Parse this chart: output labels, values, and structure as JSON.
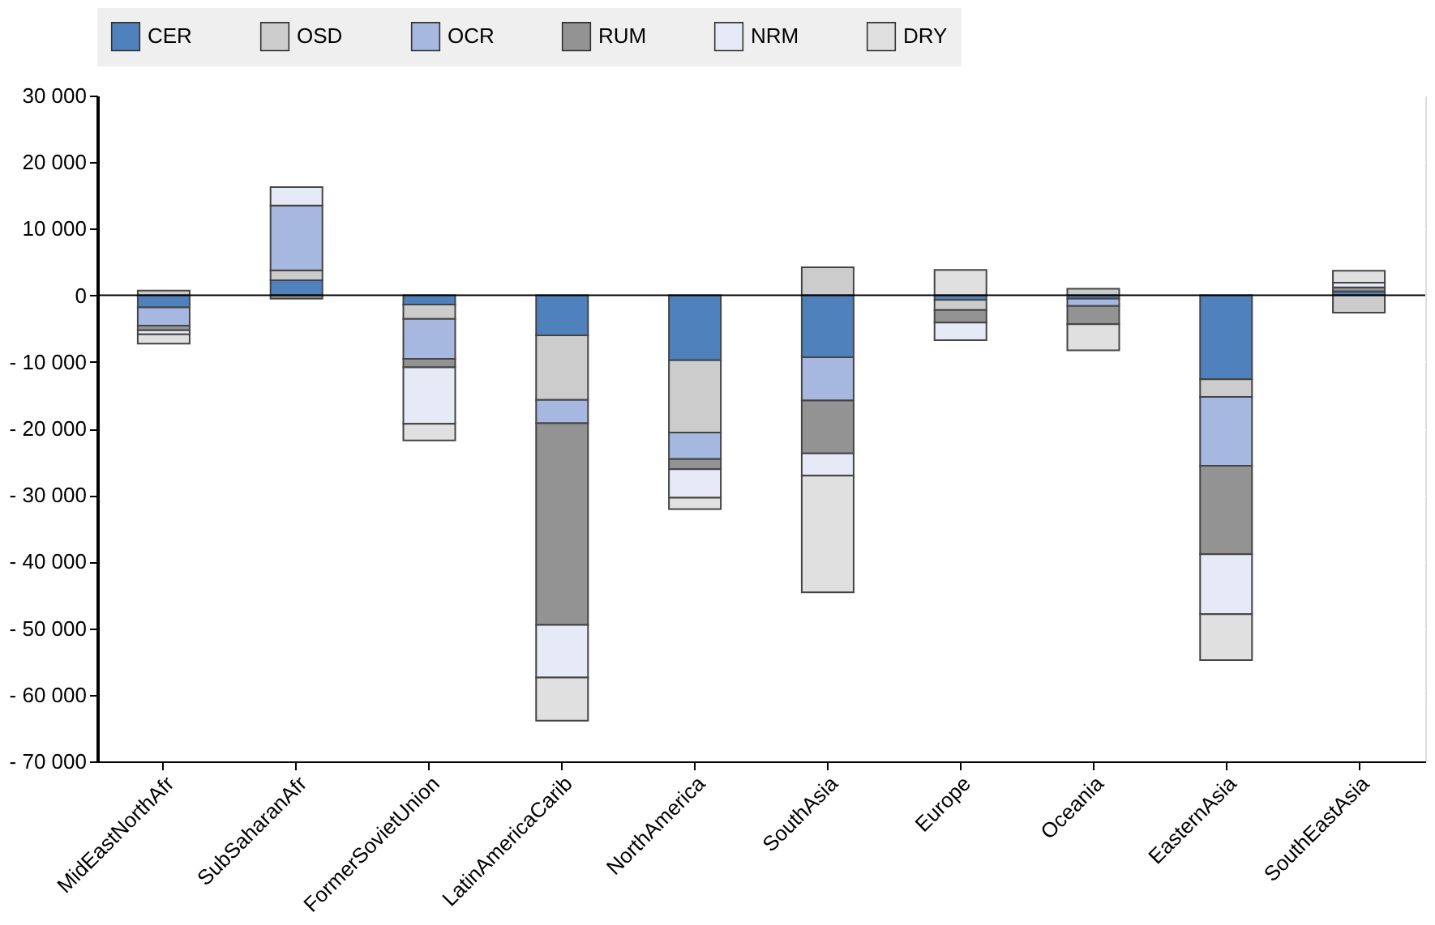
{
  "chart_data": {
    "type": "bar",
    "stacked": true,
    "categories": [
      "MidEastNorthAfr",
      "SubSaharanAfr",
      "FormerSovietUnion",
      "LatinAmericaCarib",
      "NorthAmerica",
      "SouthAsia",
      "Europe",
      "Oceania",
      "EasternAsia",
      "SouthEastAsia"
    ],
    "series": [
      {
        "name": "CER",
        "color": "#4f81bd",
        "values": [
          -1800,
          2250,
          -1400,
          -6000,
          -9750,
          -9300,
          -700,
          -500,
          -12600,
          600
        ]
      },
      {
        "name": "OSD",
        "color": "#cccccc",
        "values": [
          700,
          1500,
          -2150,
          -9700,
          -10850,
          4200,
          -1500,
          1000,
          -2650,
          -2600
        ]
      },
      {
        "name": "OCR",
        "color": "#a6b8e0",
        "values": [
          -2750,
          9750,
          -6000,
          -3500,
          -4000,
          -6500,
          null,
          -1100,
          -10350,
          null
        ]
      },
      {
        "name": "RUM",
        "color": "#939393",
        "values": [
          -700,
          -500,
          -1250,
          -30300,
          -1500,
          -7950,
          -1900,
          -2750,
          -13300,
          600
        ]
      },
      {
        "name": "NRM",
        "color": "#e6eaf6",
        "values": [
          -600,
          2750,
          -8500,
          -7900,
          -4300,
          -3350,
          -2650,
          null,
          -9000,
          700
        ]
      },
      {
        "name": "DRY",
        "color": "#e0e0e0",
        "values": [
          -1400,
          null,
          -2500,
          -6500,
          -1700,
          -17500,
          3800,
          -3900,
          -6900,
          1800
        ]
      }
    ],
    "ylim": [
      -70000,
      30000
    ],
    "yticks": [
      {
        "value": -70000,
        "label": "- 70 000"
      },
      {
        "value": -60000,
        "label": "- 60 000"
      },
      {
        "value": -50000,
        "label": "- 50 000"
      },
      {
        "value": -40000,
        "label": "- 40 000"
      },
      {
        "value": -30000,
        "label": "- 30 000"
      },
      {
        "value": -20000,
        "label": "- 20 000"
      },
      {
        "value": -10000,
        "label": "- 10 000"
      },
      0,
      {
        "value": 10000,
        "label": "10 000"
      },
      {
        "value": 20000,
        "label": "20 000"
      },
      {
        "value": 30000,
        "label": "30 000"
      }
    ],
    "grid": true,
    "legend": "top"
  }
}
